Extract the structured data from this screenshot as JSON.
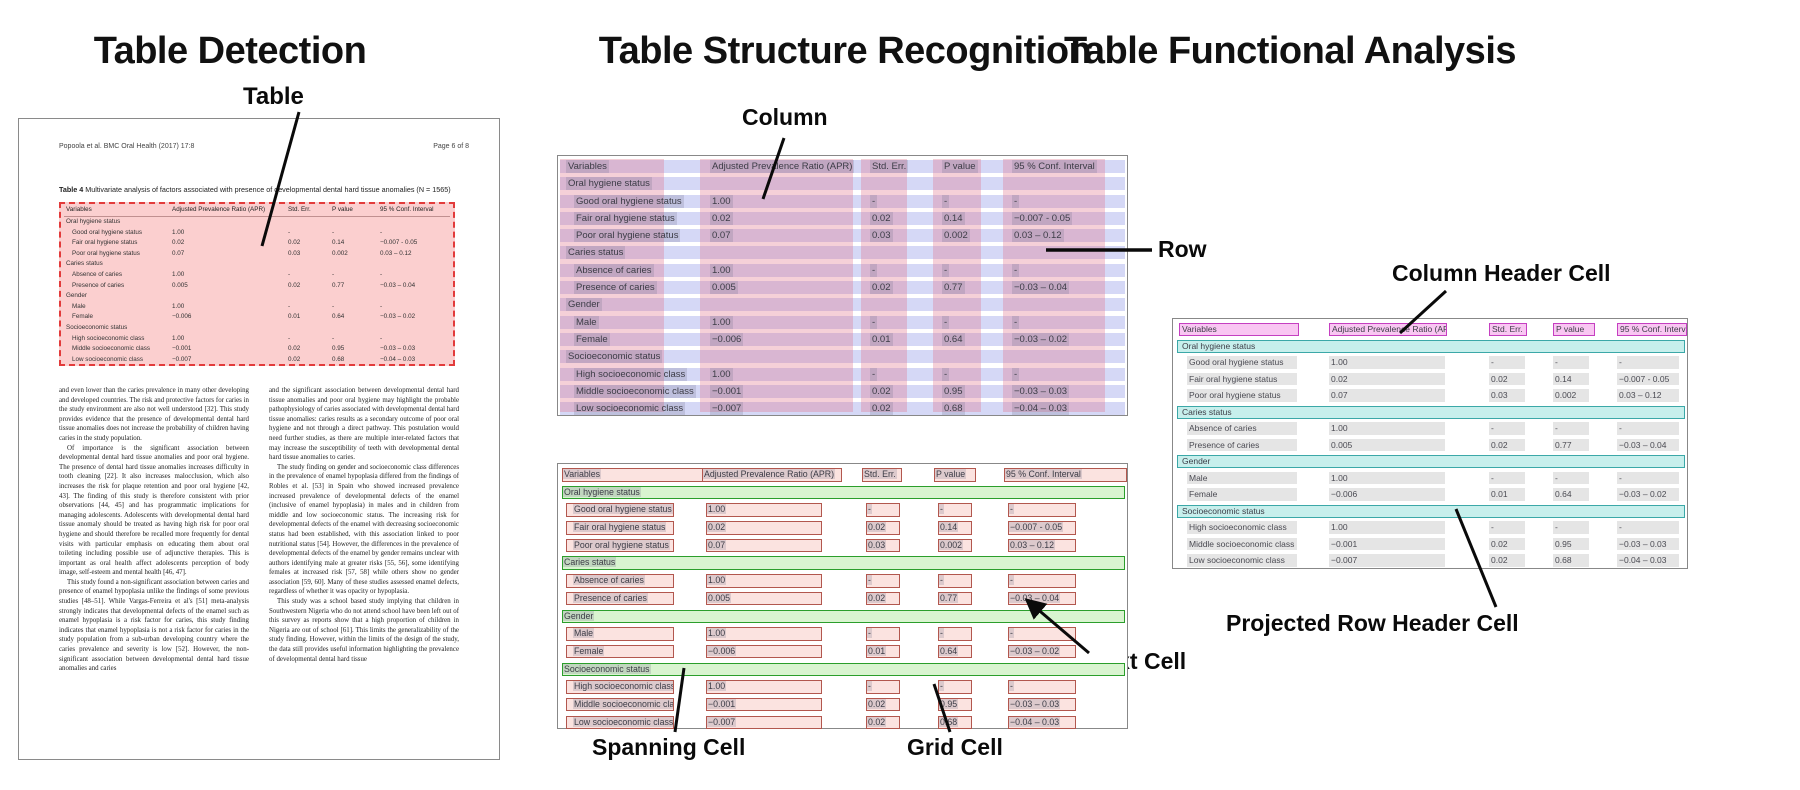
{
  "panels": {
    "detection": {
      "title": "Table Detection",
      "callout": "Table"
    },
    "structure": {
      "title": "Table Structure Recognition",
      "callouts": {
        "column": "Column",
        "row": "Row",
        "spanning": "Spanning Cell",
        "grid": "Grid Cell",
        "text": "Text Cell"
      }
    },
    "functional": {
      "title": "Table Functional Analysis",
      "callouts": {
        "column_header": "Column Header Cell",
        "projected_row_header": "Projected Row Header Cell"
      }
    }
  },
  "document": {
    "header_left": "Popoola et al. BMC Oral Health  (2017) 17:8",
    "header_right": "Page 6 of 8",
    "caption_label": "Table 4",
    "caption_text": " Multivariate analysis of factors associated with presence of developmental dental hard tissue anomalies (N = 1565)",
    "body_left": [
      "and even lower than the caries prevalence in many other developing and developed countries. The risk and protective factors for caries in the study environment are also not well understood [32]. This study provides evidence that the presence of developmental dental hard tissue anomalies does not increase the probability of children having caries in the study population.",
      "Of importance is the significant association between developmental dental hard tissue anomalies and poor oral hygiene. The presence of dental hard tissue anomalies increases difficulty in tooth cleaning [22]. It also increases malocclusion, which also increases the risk for plaque retention and poor oral hygiene [42, 43]. The finding of this study is therefore consistent with prior observations [44, 45] and has programmatic implications for managing adolescents. Adolescents with developmental dental hard tissue anomaly should be treated as having high risk for poor oral hygiene and should therefore be recalled more frequently for dental visits with particular emphasis on educating them about oral toileting including possible use of adjunctive therapies. This is important as oral health affect adolescents perception of body image, self-esteem and mental health [46, 47].",
      "This study found a non-significant association between caries and presence of enamel hypoplasia unlike the findings of some previous studies [48–51]. While Vargas-Ferreira et al's [51] meta-analysis strongly indicates that developmental defects of the enamel such as enamel hypoplasia is a risk factor for caries, this study finding indicates that enamel hypoplasia is not a risk factor for caries in the study population from a sub-urban developing country where the caries prevalence and severity is low [52]. However, the non-significant association between developmental dental hard tissue anomalies and caries"
    ],
    "body_right": [
      "and the significant association between developmental dental hard tissue anomalies and poor oral hygiene may highlight the probable pathophysiology of caries associated with developmental dental hard tissue anomalies: caries results as a secondary outcome of poor oral hygiene and not through a direct pathway. This postulation would need further studies, as there are multiple inter-related factors that may increase the susceptibility of teeth with developmental dental hard tissue anomalies to caries.",
      "The study finding on gender and socioeconomic class differences in the prevalence of enamel hypoplasia differed from the findings of Robles et al. [53] in Spain who showed increased prevalence increased prevalence of developmental defects of the enamel (inclusive of enamel hypoplasia) in males and in children from middle and low socioeconomic status. The increasing risk for developmental defects of the enamel with decreasing socioeconomic status had been established, with this association linked to poor nutritional status [54]. However, the differences in the prevalence of developmental defects of the enamel by gender remains unclear with authors identifying male at greater risks [55, 56], some identifying females at increased risk [57, 58] while others show no gender association [59, 60]. Many of these studies assessed enamel defects, regardless of whether it was opacity or hypoplasia.",
      "This study was a school based study implying that children in Southwestern Nigeria who do not attend school have been left out of this survey as reports show that a high proportion of children in Nigeria are out of school [61]. This limits the generalizability of the study finding. However, within the limits of the design of the study, the data still provides useful information highlighting the prevalence of developmental dental hard tissue"
    ]
  },
  "table": {
    "columns": [
      "Variables",
      "Adjusted Prevalence Ratio (APR)",
      "Std. Err.",
      "P value",
      "95 % Conf. Interval"
    ],
    "rows": [
      {
        "label": "Oral hygiene status",
        "section": true
      },
      {
        "label": "Good oral hygiene status",
        "apr": "1.00",
        "se": "-",
        "p": "-",
        "ci": "-"
      },
      {
        "label": "Fair oral hygiene status",
        "apr": "0.02",
        "se": "0.02",
        "p": "0.14",
        "ci": "−0.007 - 0.05"
      },
      {
        "label": "Poor oral hygiene status",
        "apr": "0.07",
        "se": "0.03",
        "p": "0.002",
        "ci": "0.03 – 0.12"
      },
      {
        "label": "Caries status",
        "section": true
      },
      {
        "label": "Absence of caries",
        "apr": "1.00",
        "se": "-",
        "p": "-",
        "ci": "-"
      },
      {
        "label": "Presence of caries",
        "apr": "0.005",
        "se": "0.02",
        "p": "0.77",
        "ci": "−0.03 – 0.04"
      },
      {
        "label": "Gender",
        "section": true
      },
      {
        "label": "Male",
        "apr": "1.00",
        "se": "-",
        "p": "-",
        "ci": "-"
      },
      {
        "label": "Female",
        "apr": "−0.006",
        "se": "0.01",
        "p": "0.64",
        "ci": "−0.03 – 0.02"
      },
      {
        "label": "Socioeconomic status",
        "section": true
      },
      {
        "label": "High socioeconomic class",
        "apr": "1.00",
        "se": "-",
        "p": "-",
        "ci": "-"
      },
      {
        "label": "Middle socioeconomic class",
        "apr": "−0.001",
        "se": "0.02",
        "p": "0.95",
        "ci": "−0.03 – 0.03"
      },
      {
        "label": "Low socioeconomic class",
        "apr": "−0.007",
        "se": "0.02",
        "p": "0.68",
        "ci": "−0.04 – 0.03"
      }
    ]
  },
  "colors": {
    "detection_fill": "rgba(247,168,168,0.55)",
    "detection_border": "#e23b3b",
    "row_band": "rgba(134,144,230,0.35)",
    "column_band": "rgba(226,112,136,0.33)",
    "token_bg": "rgba(110,110,130,0.22)",
    "cell_fill": "#fbe3e0",
    "cell_border": "#b2574e",
    "spanning_fill": "#d9f4d0",
    "spanning_border": "#2b9e2b",
    "colheader_fill": "#f9c6f2",
    "colheader_border": "#c53fc1",
    "projected_fill": "#c7efec",
    "projected_border": "#3ba8a8"
  }
}
